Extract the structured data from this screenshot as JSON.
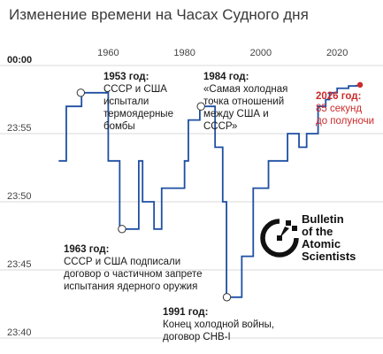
{
  "title": "Изменение времени на Часах Судного дня",
  "logo": {
    "lines": [
      "Bulletin",
      "of the",
      "Atomic",
      "Scientists"
    ]
  },
  "colors": {
    "line": "#1f4fa3",
    "highlight": "#cc2b2b",
    "grid": "#d9d9d9"
  },
  "chart_data": {
    "type": "line",
    "step": true,
    "title": "Изменение времени на Часах Судного дня",
    "xlabel": "",
    "ylabel": "",
    "x_ticks": [
      1960,
      1980,
      2000,
      2020
    ],
    "y_ticks": [
      "00:00",
      "23:55",
      "23:50",
      "23:45",
      "23:40"
    ],
    "y_unit": "minutes before midnight",
    "xlim": [
      1946,
      2029
    ],
    "ylim": [
      -20,
      0
    ],
    "series": [
      {
        "x": [
          1947,
          1949,
          1953,
          1960,
          1963,
          1968,
          1969,
          1972,
          1974,
          1980,
          1981,
          1984,
          1988,
          1990,
          1991,
          1995,
          1998,
          2002,
          2007,
          2010,
          2012,
          2015,
          2017,
          2018,
          2020,
          2023,
          2025,
          2026
        ],
        "y": [
          -7,
          -3,
          -2,
          -7,
          -12,
          -7,
          -10,
          -12,
          -9,
          -7,
          -4,
          -3,
          -6,
          -10,
          -17,
          -14,
          -9,
          -7,
          -5,
          -6,
          -5,
          -3,
          -2.5,
          -2,
          -1.67,
          -1.5,
          -1.48,
          -1.42
        ]
      }
    ],
    "highlight_point": {
      "x": 2026,
      "y": -1.42
    },
    "annotations": [
      {
        "year": 1953,
        "value": -2,
        "title": "1953 год:",
        "lines": [
          "СССР и США",
          "испытали",
          "термоядерные",
          "бомбы"
        ]
      },
      {
        "year": 1963,
        "value": -12,
        "title": "1963 год:",
        "lines": [
          "СССР и США подписали",
          "договор о частичном запрете",
          "испытания ядерного оружия"
        ]
      },
      {
        "year": 1984,
        "value": -3,
        "title": "1984 год:",
        "lines": [
          "«Самая холодная",
          "точка отношений",
          "между США и",
          "СССР»"
        ]
      },
      {
        "year": 1991,
        "value": -17,
        "title": "1991 год:",
        "lines": [
          "Конец холодной войны,",
          "договор СНВ-I"
        ]
      },
      {
        "year": 2026,
        "value": -1.42,
        "title": "2026 год:",
        "lines": [
          "85 секунд",
          "до полуночи"
        ],
        "highlight": true
      }
    ]
  }
}
